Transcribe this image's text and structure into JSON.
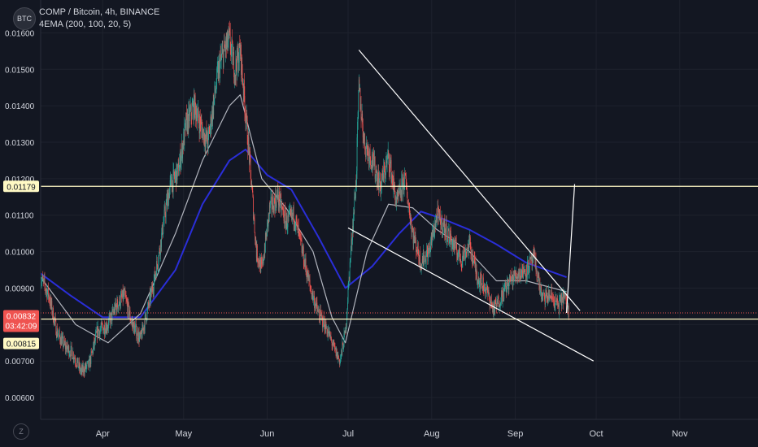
{
  "legend": {
    "symbol_badge": "BTC",
    "title": "COMP / Bitcoin, 4h, BINANCE",
    "indicator": "4EMA (200, 100, 20, 5)"
  },
  "zoom_icon": "Z",
  "colors": {
    "background": "#131722",
    "up": "#26a69a",
    "down": "#ef5350",
    "ema_slow": "#2a2ed8",
    "ema_fast": "#b2b5be",
    "level_lines": "#fff9c4",
    "trend_lines": "#ffffff",
    "price_badge": "#ef5350"
  },
  "chart_data": {
    "type": "candlestick",
    "x_axis": {
      "ticks": [
        {
          "label": "Apr",
          "date": "2021-04-01"
        },
        {
          "label": "May",
          "date": "2021-05-01"
        },
        {
          "label": "Jun",
          "date": "2021-06-01"
        },
        {
          "label": "Jul",
          "date": "2021-07-01"
        },
        {
          "label": "Aug",
          "date": "2021-08-01"
        },
        {
          "label": "Sep",
          "date": "2021-09-01"
        },
        {
          "label": "Oct",
          "date": "2021-10-01"
        },
        {
          "label": "Nov",
          "date": "2021-11-01"
        }
      ],
      "range": [
        "2021-03-09",
        "2021-11-30"
      ]
    },
    "y_axis": {
      "range": [
        0.0054,
        0.0169
      ],
      "tick_labels": [
        "0.00600",
        "0.00700",
        "0.00800",
        "0.00900",
        "0.01000",
        "0.01100",
        "0.01200",
        "0.01300",
        "0.01400",
        "0.01500",
        "0.01600"
      ],
      "position": "left"
    },
    "price_path": [
      [
        "2021-03-09",
        0.0093
      ],
      [
        "2021-03-12",
        0.0088
      ],
      [
        "2021-03-15",
        0.0078
      ],
      [
        "2021-03-18",
        0.0074
      ],
      [
        "2021-03-21",
        0.0072
      ],
      [
        "2021-03-24",
        0.0067
      ],
      [
        "2021-03-27",
        0.0069
      ],
      [
        "2021-03-30",
        0.0078
      ],
      [
        "2021-04-03",
        0.008
      ],
      [
        "2021-04-06",
        0.0085
      ],
      [
        "2021-04-09",
        0.0088
      ],
      [
        "2021-04-12",
        0.008
      ],
      [
        "2021-04-15",
        0.0076
      ],
      [
        "2021-04-18",
        0.0085
      ],
      [
        "2021-04-20",
        0.0092
      ],
      [
        "2021-04-22",
        0.01
      ],
      [
        "2021-04-24",
        0.011
      ],
      [
        "2021-04-26",
        0.0118
      ],
      [
        "2021-04-29",
        0.0122
      ],
      [
        "2021-05-02",
        0.0135
      ],
      [
        "2021-05-05",
        0.014
      ],
      [
        "2021-05-08",
        0.0133
      ],
      [
        "2021-05-10",
        0.013
      ],
      [
        "2021-05-12",
        0.014
      ],
      [
        "2021-05-14",
        0.015
      ],
      [
        "2021-05-16",
        0.0155
      ],
      [
        "2021-05-18",
        0.0158
      ],
      [
        "2021-05-20",
        0.015
      ],
      [
        "2021-05-22",
        0.0155
      ],
      [
        "2021-05-24",
        0.0138
      ],
      [
        "2021-05-26",
        0.012
      ],
      [
        "2021-05-28",
        0.01
      ],
      [
        "2021-05-30",
        0.0095
      ],
      [
        "2021-06-02",
        0.0112
      ],
      [
        "2021-06-05",
        0.0115
      ],
      [
        "2021-06-08",
        0.0108
      ],
      [
        "2021-06-11",
        0.011
      ],
      [
        "2021-06-14",
        0.01
      ],
      [
        "2021-06-17",
        0.009
      ],
      [
        "2021-06-20",
        0.0083
      ],
      [
        "2021-06-23",
        0.0079
      ],
      [
        "2021-06-26",
        0.0073
      ],
      [
        "2021-06-28",
        0.007
      ],
      [
        "2021-06-30",
        0.0078
      ],
      [
        "2021-07-02",
        0.01
      ],
      [
        "2021-07-04",
        0.012
      ],
      [
        "2021-07-05",
        0.0145
      ],
      [
        "2021-07-07",
        0.013
      ],
      [
        "2021-07-10",
        0.0125
      ],
      [
        "2021-07-13",
        0.0118
      ],
      [
        "2021-07-16",
        0.0126
      ],
      [
        "2021-07-19",
        0.0113
      ],
      [
        "2021-07-22",
        0.012
      ],
      [
        "2021-07-25",
        0.0105
      ],
      [
        "2021-07-28",
        0.0097
      ],
      [
        "2021-07-31",
        0.01
      ],
      [
        "2021-08-03",
        0.011
      ],
      [
        "2021-08-06",
        0.0106
      ],
      [
        "2021-08-09",
        0.0102
      ],
      [
        "2021-08-12",
        0.0098
      ],
      [
        "2021-08-15",
        0.0102
      ],
      [
        "2021-08-18",
        0.0093
      ],
      [
        "2021-08-21",
        0.009
      ],
      [
        "2021-08-24",
        0.0084
      ],
      [
        "2021-08-27",
        0.0088
      ],
      [
        "2021-08-30",
        0.0092
      ],
      [
        "2021-09-02",
        0.0094
      ],
      [
        "2021-09-05",
        0.0095
      ],
      [
        "2021-09-08",
        0.0098
      ],
      [
        "2021-09-11",
        0.0087
      ],
      [
        "2021-09-14",
        0.0088
      ],
      [
        "2021-09-17",
        0.0085
      ],
      [
        "2021-09-19",
        0.0088
      ],
      [
        "2021-09-21",
        0.0083
      ]
    ],
    "ema_slow_path": [
      [
        "2021-03-09",
        0.0094
      ],
      [
        "2021-03-20",
        0.0088
      ],
      [
        "2021-04-01",
        0.0082
      ],
      [
        "2021-04-15",
        0.0082
      ],
      [
        "2021-04-28",
        0.0095
      ],
      [
        "2021-05-08",
        0.0113
      ],
      [
        "2021-05-18",
        0.0125
      ],
      [
        "2021-05-24",
        0.0128
      ],
      [
        "2021-06-01",
        0.0121
      ],
      [
        "2021-06-10",
        0.0117
      ],
      [
        "2021-06-20",
        0.0104
      ],
      [
        "2021-06-30",
        0.009
      ],
      [
        "2021-07-10",
        0.0096
      ],
      [
        "2021-07-20",
        0.0105
      ],
      [
        "2021-07-28",
        0.0111
      ],
      [
        "2021-08-05",
        0.0109
      ],
      [
        "2021-08-15",
        0.0106
      ],
      [
        "2021-08-25",
        0.0102
      ],
      [
        "2021-09-05",
        0.0097
      ],
      [
        "2021-09-20",
        0.0093
      ]
    ],
    "ema_fast_path": [
      [
        "2021-03-09",
        0.0093
      ],
      [
        "2021-03-22",
        0.008
      ],
      [
        "2021-04-03",
        0.0075
      ],
      [
        "2021-04-15",
        0.0083
      ],
      [
        "2021-04-28",
        0.0105
      ],
      [
        "2021-05-08",
        0.0125
      ],
      [
        "2021-05-18",
        0.014
      ],
      [
        "2021-05-22",
        0.0143
      ],
      [
        "2021-05-30",
        0.012
      ],
      [
        "2021-06-08",
        0.0112
      ],
      [
        "2021-06-18",
        0.01
      ],
      [
        "2021-06-25",
        0.0082
      ],
      [
        "2021-06-30",
        0.0075
      ],
      [
        "2021-07-08",
        0.01
      ],
      [
        "2021-07-16",
        0.0113
      ],
      [
        "2021-07-25",
        0.0112
      ],
      [
        "2021-08-03",
        0.0106
      ],
      [
        "2021-08-15",
        0.01
      ],
      [
        "2021-08-25",
        0.0092
      ],
      [
        "2021-09-05",
        0.0092
      ],
      [
        "2021-09-20",
        0.0089
      ]
    ],
    "horizontal_levels": [
      {
        "value": 0.01179,
        "label": "0.01179"
      },
      {
        "value": 0.00815,
        "label": "0.00815"
      }
    ],
    "current_price": {
      "value": 0.00832,
      "label": "0.00832",
      "countdown": "03:42:09"
    },
    "trend_lines": [
      {
        "from": [
          "2021-07-05",
          0.01553
        ],
        "to": [
          "2021-09-25",
          0.00838
        ]
      },
      {
        "from": [
          "2021-07-01",
          0.01065
        ],
        "to": [
          "2021-09-30",
          0.007
        ]
      },
      {
        "from": [
          "2021-09-20",
          0.00832
        ],
        "to": [
          "2021-09-23",
          0.01185
        ]
      }
    ],
    "grid": true,
    "legend_placement": "top-left"
  }
}
